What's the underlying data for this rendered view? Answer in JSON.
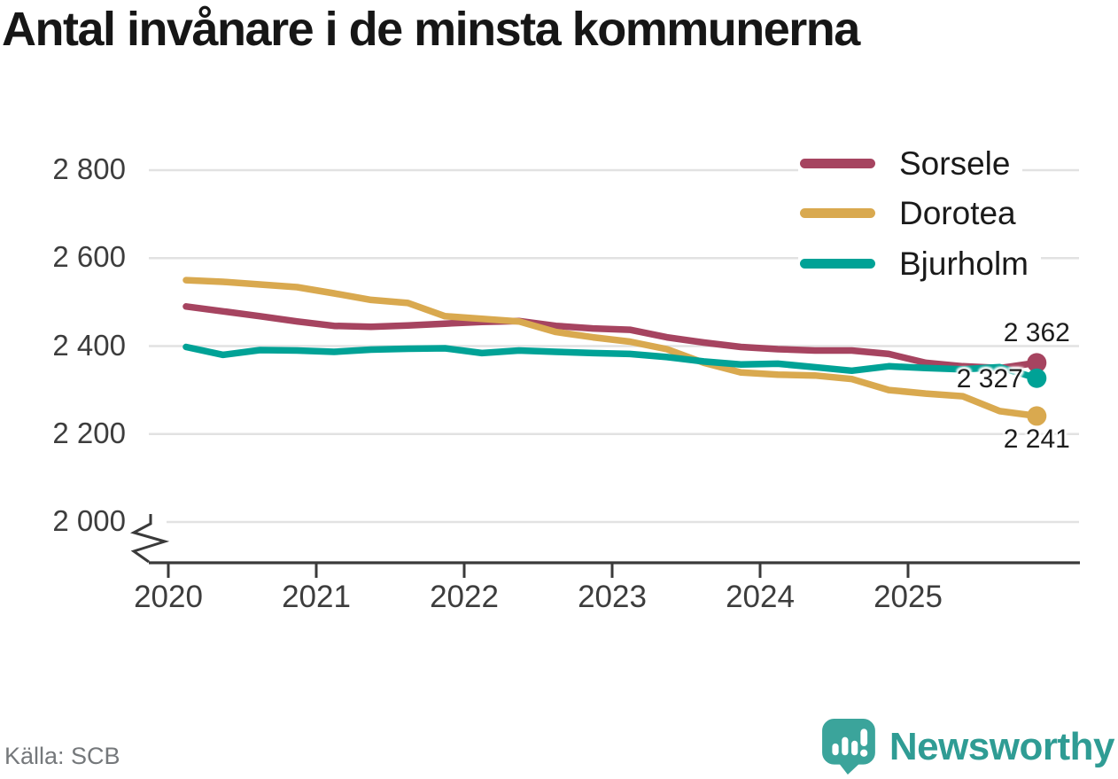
{
  "chart_data": {
    "type": "line",
    "title": "Antal invånare i de minsta kommunerna",
    "grid": "horizontal",
    "legend_position": "top-right",
    "x_axis": {
      "ticks": [
        2020,
        2021,
        2022,
        2023,
        2024,
        2025
      ],
      "tick_labels": [
        "2020",
        "2021",
        "2022",
        "2023",
        "2024",
        "2025"
      ]
    },
    "y_axis": {
      "range": [
        2000,
        2800
      ],
      "broken_axis": true,
      "ticks": [
        {
          "value": 2800,
          "label": "2 800"
        },
        {
          "value": 2600,
          "label": "2 600"
        },
        {
          "value": 2400,
          "label": "2 400"
        },
        {
          "value": 2200,
          "label": "2 200"
        },
        {
          "value": 2000,
          "label": "2 000"
        }
      ]
    },
    "x": [
      2020.12,
      2020.37,
      2020.62,
      2020.87,
      2021.12,
      2021.37,
      2021.62,
      2021.87,
      2022.12,
      2022.37,
      2022.62,
      2022.87,
      2023.12,
      2023.37,
      2023.62,
      2023.87,
      2024.12,
      2024.37,
      2024.62,
      2024.87,
      2025.12,
      2025.37,
      2025.62,
      2025.87
    ],
    "series": [
      {
        "name": "Sorsele",
        "color": "#a64460",
        "end_label": "2 362",
        "values": [
          2490,
          2479,
          2468,
          2456,
          2446,
          2444,
          2447,
          2451,
          2455,
          2457,
          2446,
          2440,
          2437,
          2420,
          2408,
          2398,
          2393,
          2390,
          2390,
          2382,
          2362,
          2354,
          2350,
          2362
        ]
      },
      {
        "name": "Dorotea",
        "color": "#d9a94f",
        "end_label": "2 241",
        "values": [
          2550,
          2546,
          2540,
          2534,
          2520,
          2505,
          2498,
          2468,
          2462,
          2456,
          2432,
          2420,
          2410,
          2393,
          2362,
          2340,
          2335,
          2333,
          2325,
          2300,
          2292,
          2286,
          2252,
          2241
        ]
      },
      {
        "name": "Bjurholm",
        "color": "#00a296",
        "end_label": "2 327",
        "values": [
          2398,
          2380,
          2391,
          2390,
          2387,
          2392,
          2394,
          2395,
          2384,
          2390,
          2387,
          2384,
          2382,
          2375,
          2365,
          2358,
          2360,
          2352,
          2344,
          2354,
          2350,
          2347,
          2352,
          2327
        ]
      }
    ]
  },
  "footer": {
    "source": "Källa: SCB",
    "brand": "Newsworthy"
  }
}
